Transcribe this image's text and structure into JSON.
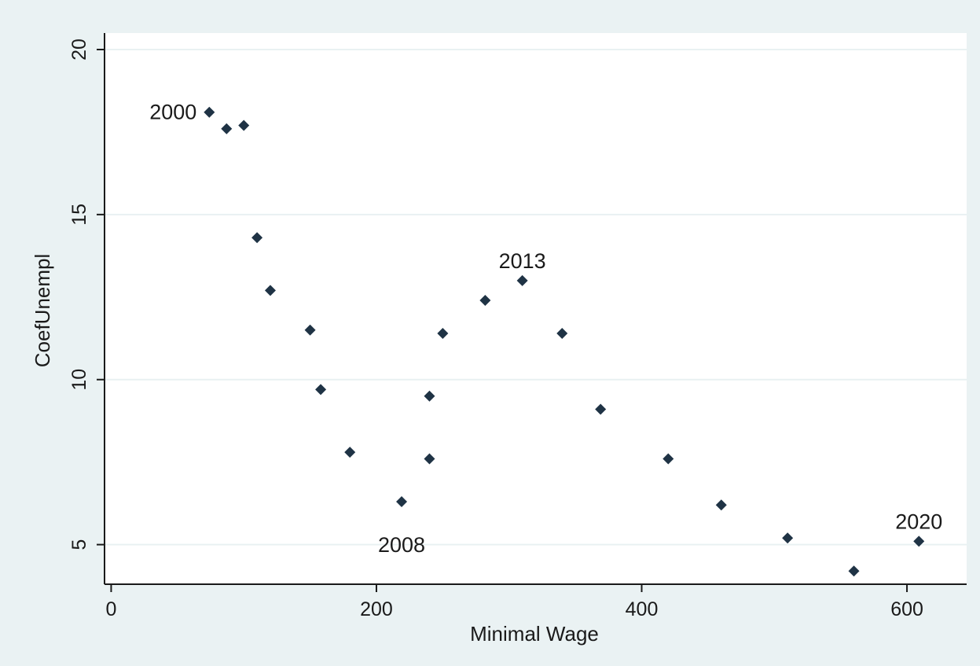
{
  "chart_data": {
    "type": "scatter",
    "title": "",
    "xlabel": "Minimal Wage",
    "ylabel": "CoefUnempl",
    "xlim": [
      -5,
      645
    ],
    "ylim": [
      3.8,
      20.5
    ],
    "xticks": [
      0,
      200,
      400,
      600
    ],
    "yticks": [
      5,
      10,
      15,
      20
    ],
    "grid": "horizontal",
    "legend": "none",
    "colors": {
      "background": "#eaf2f3",
      "plot_area": "#ffffff",
      "marker": "#1f3345",
      "grid": "#e9f1f2",
      "axis": "#1a1a1a"
    },
    "series": [
      {
        "points": [
          {
            "x": 74,
            "y": 18.1,
            "label": "2000"
          },
          {
            "x": 87,
            "y": 17.6
          },
          {
            "x": 100,
            "y": 17.7
          },
          {
            "x": 110,
            "y": 14.3
          },
          {
            "x": 120,
            "y": 12.7
          },
          {
            "x": 150,
            "y": 11.5
          },
          {
            "x": 158,
            "y": 9.7
          },
          {
            "x": 180,
            "y": 7.8
          },
          {
            "x": 219,
            "y": 6.3,
            "label": "2008"
          },
          {
            "x": 240,
            "y": 7.6
          },
          {
            "x": 240,
            "y": 9.5
          },
          {
            "x": 250,
            "y": 11.4
          },
          {
            "x": 282,
            "y": 12.4
          },
          {
            "x": 310,
            "y": 13.0,
            "label": "2013"
          },
          {
            "x": 340,
            "y": 11.4
          },
          {
            "x": 369,
            "y": 9.1
          },
          {
            "x": 420,
            "y": 7.6
          },
          {
            "x": 460,
            "y": 6.2
          },
          {
            "x": 510,
            "y": 5.2
          },
          {
            "x": 560,
            "y": 4.2
          },
          {
            "x": 609,
            "y": 5.1,
            "label": "2020"
          }
        ]
      }
    ]
  }
}
